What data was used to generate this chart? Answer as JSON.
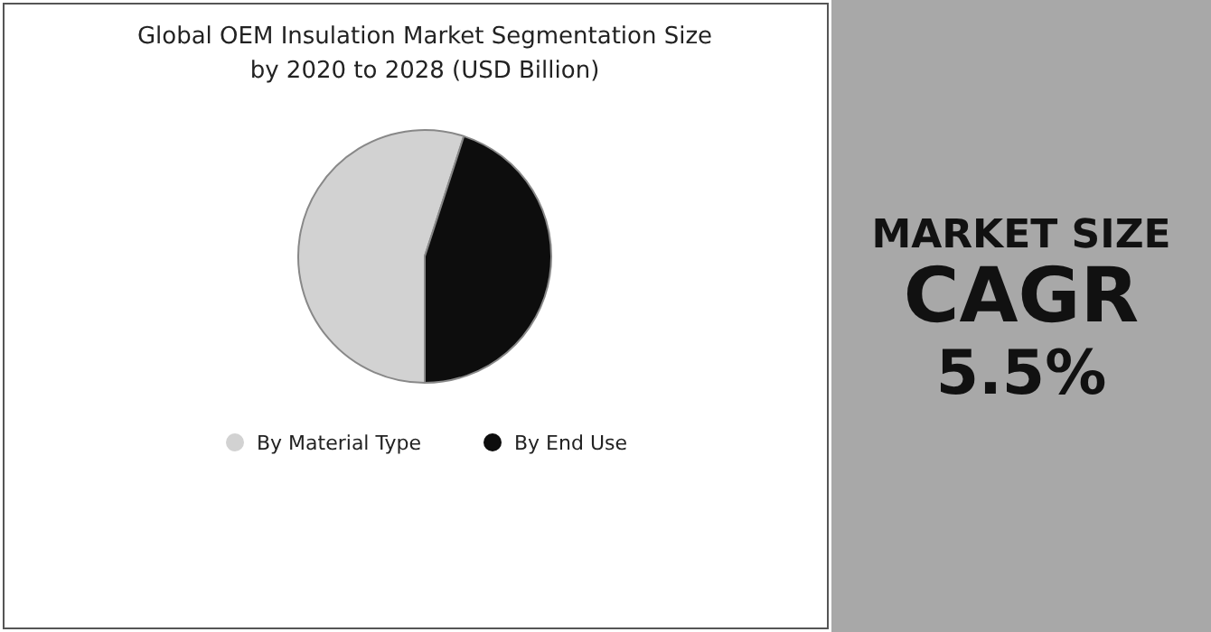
{
  "chart_data": [
    {
      "type": "pie",
      "title": "Global OEM Insulation Market Segmentation Size by 2020 to 2028 (USD Billion)",
      "categories": [
        "By Material Type",
        "By End Use"
      ],
      "values": [
        55,
        45
      ],
      "colors": [
        "#d2d2d2",
        "#0d0d0d"
      ],
      "legend": "bottom"
    },
    {
      "type": "other",
      "title": "MARKET SIZE",
      "annotations": [
        "CAGR",
        "5.5%"
      ]
    }
  ]
}
